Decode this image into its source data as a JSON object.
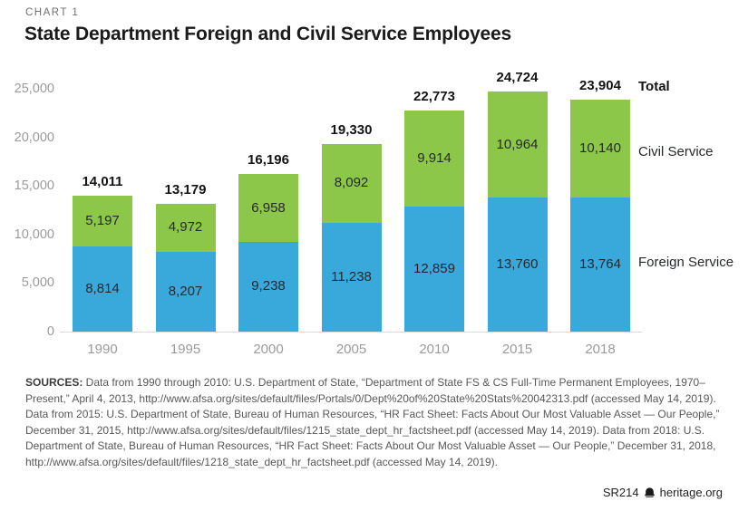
{
  "header": {
    "kicker": "CHART 1",
    "title": "State Department Foreign and Civil Service Employees"
  },
  "chart_data": {
    "type": "bar",
    "stacked": true,
    "title": "State Department Foreign and Civil Service Employees",
    "categories": [
      "1990",
      "1995",
      "2000",
      "2005",
      "2010",
      "2015",
      "2018"
    ],
    "series": [
      {
        "name": "Foreign Service",
        "color": "#39A8DB",
        "values": [
          8814,
          8207,
          9238,
          11238,
          12859,
          13760,
          13764
        ]
      },
      {
        "name": "Civil Service",
        "color": "#8CC74A",
        "values": [
          5197,
          4972,
          6958,
          8092,
          9914,
          10964,
          10140
        ]
      }
    ],
    "totals": [
      14011,
      13179,
      16196,
      19330,
      22773,
      24724,
      23904
    ],
    "total_label": "Total",
    "ylim": [
      0,
      25000
    ],
    "yticks": [
      0,
      5000,
      10000,
      15000,
      20000,
      25000
    ],
    "ytick_labels": [
      "0",
      "5,000",
      "10,000",
      "15,000",
      "20,000",
      "25,000"
    ],
    "grid": false,
    "legend_position": "right",
    "value_label_color": "#26292b",
    "axis_label_color": "#9b9b9b"
  },
  "sources": {
    "label": "SOURCES:",
    "text": " Data from 1990 through 2010: U.S. Department of State, “Department of State FS & CS Full-Time Permanent Employees, 1970–Present,” April 4, 2013, http://www.afsa.org/sites/default/files/Portals/0/Dept%20of%20State%20Stats%20042313.pdf (accessed May 14, 2019). Data from 2015: U.S. Department of State, Bureau of Human Resources, “HR Fact Sheet: Facts About Our Most Valuable Asset — Our People,” December 31, 2015, http://www.afsa.org/sites/default/files/1215_state_dept_hr_factsheet.pdf (accessed May 14, 2019). Data from 2018: U.S. Department of State, Bureau of Human Resources, “HR Fact Sheet: Facts About Our Most Valuable Asset — Our People,” December 31, 2018, http://www.afsa.org/sites/default/files/1218_state_dept_hr_factsheet.pdf (accessed May 14, 2019)."
  },
  "footer": {
    "report_id": "SR214",
    "site": "heritage.org",
    "icon": "heritage-bell-icon"
  }
}
